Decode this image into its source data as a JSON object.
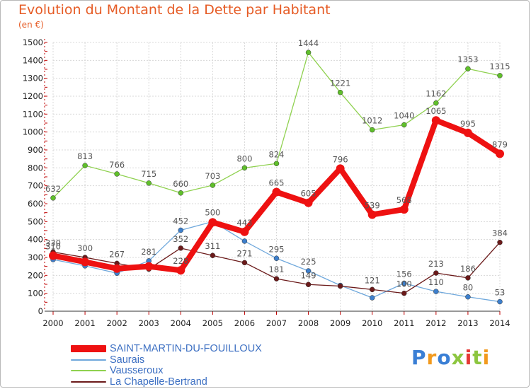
{
  "title": "Evolution du Montant de la Dette par Habitant",
  "unit": "(en €)",
  "logo": "Proxiti",
  "chart_data": {
    "type": "line",
    "title": "Evolution du Montant de la Dette par Habitant",
    "ylabel": "(en €)",
    "xlabel": "",
    "x": [
      "2000",
      "2001",
      "2002",
      "2003",
      "2004",
      "2005",
      "2006",
      "2007",
      "2008",
      "2009",
      "2010",
      "2011",
      "2012",
      "2013",
      "2014"
    ],
    "ylim": [
      0,
      1500
    ],
    "yticks": [
      0,
      100,
      200,
      300,
      400,
      500,
      600,
      700,
      800,
      900,
      1000,
      1100,
      1200,
      1300,
      1400,
      1500
    ],
    "grid": true,
    "legend": "bottom-left",
    "series": [
      {
        "name": "SAINT-MARTIN-DU-FOUILLOUX",
        "color": "#ee1111",
        "values": [
          310,
          275,
          238,
          250,
          228,
          496,
          443,
          665,
          605,
          796,
          539,
          568,
          1065,
          995,
          879
        ],
        "labels": [
          "310",
          "",
          "",
          "",
          "228",
          "",
          "443",
          "665",
          "605",
          "796",
          "539",
          "568",
          "1065",
          "995",
          "879"
        ]
      },
      {
        "name": "Saurais",
        "color": "#6fa8dc",
        "values": [
          288,
          253,
          212,
          281,
          452,
          500,
          391,
          295,
          225,
          144,
          75,
          156,
          110,
          80,
          53
        ],
        "labels": [
          "",
          "",
          "",
          "281",
          "452",
          "500",
          "",
          "295",
          "225",
          "",
          "",
          "156",
          "110",
          "80",
          "53"
        ]
      },
      {
        "name": "Vausseroux",
        "color": "#8fd14f",
        "values": [
          632,
          813,
          766,
          715,
          660,
          703,
          800,
          824,
          1444,
          1221,
          1012,
          1040,
          1162,
          1353,
          1315
        ],
        "labels": [
          "632",
          "813",
          "766",
          "715",
          "660",
          "703",
          "800",
          "824",
          "1444",
          "1221",
          "1012",
          "1040",
          "1162",
          "1353",
          "1315"
        ]
      },
      {
        "name": "La Chapelle-Bertrand",
        "color": "#6b1a1a",
        "values": [
          330,
          300,
          267,
          235,
          352,
          311,
          271,
          181,
          149,
          140,
          121,
          100,
          213,
          186,
          384
        ],
        "labels": [
          "330",
          "300",
          "267",
          "",
          "352",
          "311",
          "271",
          "181",
          "149",
          "",
          "121",
          "100",
          "213",
          "186",
          "384"
        ]
      }
    ]
  },
  "legend": {
    "items": [
      {
        "label": "SAINT-MARTIN-DU-FOUILLOUX",
        "color": "#ee1111"
      },
      {
        "label": "Saurais",
        "color": "#6fa8dc"
      },
      {
        "label": "Vausseroux",
        "color": "#8fd14f"
      },
      {
        "label": "La Chapelle-Bertrand",
        "color": "#6b1a1a"
      }
    ]
  }
}
